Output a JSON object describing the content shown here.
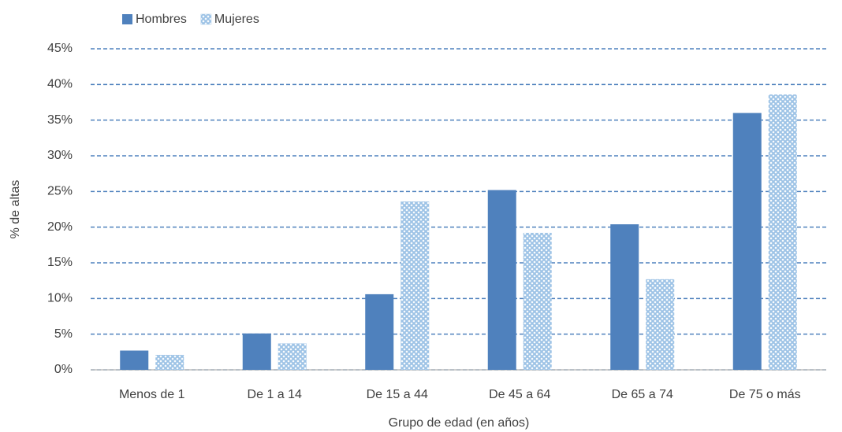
{
  "chart_data": {
    "type": "bar",
    "x_label": "Grupo de edad (en años)",
    "y_label": "% de altas",
    "categories": [
      "Menos de 1",
      "De 1 a 14",
      "De 15 a 44",
      "De 45 a 64",
      "De 65 a 74",
      "De 75 o más"
    ],
    "series": [
      {
        "name": "Hombres",
        "color": "#4f81bd",
        "pattern": "solid",
        "values": [
          2.7,
          5.1,
          10.6,
          25.2,
          20.4,
          36.0
        ]
      },
      {
        "name": "Mujeres",
        "color": "#9dc3e6",
        "pattern": "crosshatch",
        "values": [
          2.1,
          3.7,
          23.6,
          19.2,
          12.7,
          38.6
        ]
      }
    ],
    "ylim": [
      0,
      45
    ],
    "yticks": [
      {
        "value": 0,
        "label": "0%"
      },
      {
        "value": 5,
        "label": "5%"
      },
      {
        "value": 10,
        "label": "10%"
      },
      {
        "value": 15,
        "label": "15%"
      },
      {
        "value": 20,
        "label": "20%"
      },
      {
        "value": 25,
        "label": "25%"
      },
      {
        "value": 30,
        "label": "30%"
      },
      {
        "value": 35,
        "label": "35%"
      },
      {
        "value": 40,
        "label": "40%"
      },
      {
        "value": 45,
        "label": "45%"
      }
    ],
    "grid": true,
    "legend": "top-left"
  }
}
